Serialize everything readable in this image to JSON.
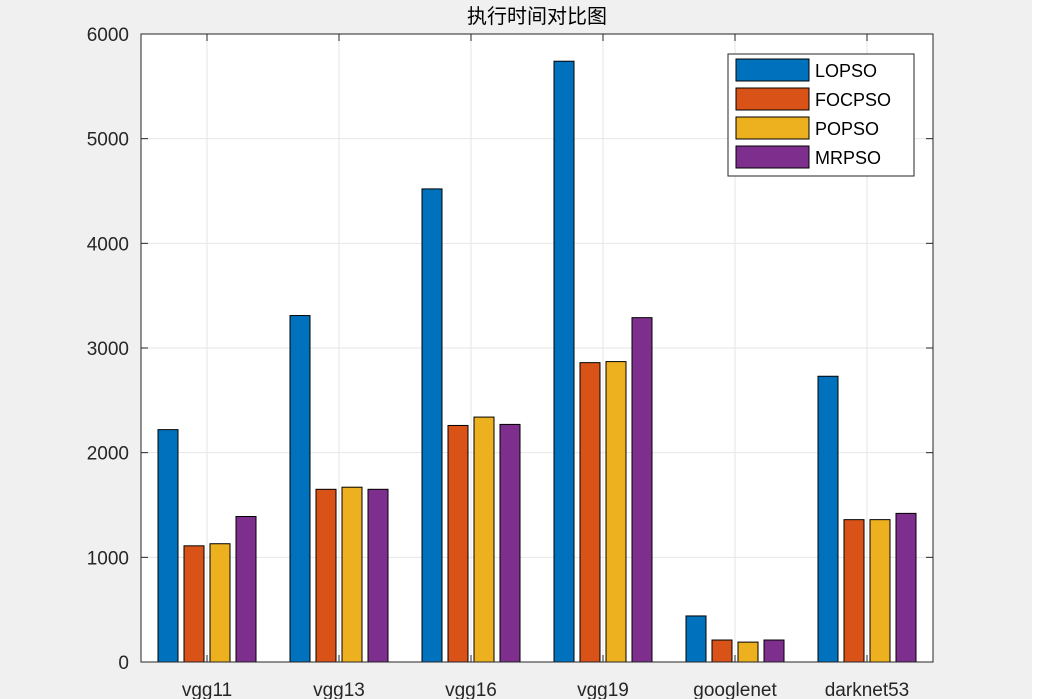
{
  "chart_data": {
    "type": "bar",
    "title": "执行时间对比图",
    "xlabel": "",
    "ylabel": "",
    "categories": [
      "vgg11",
      "vgg13",
      "vgg16",
      "vgg19",
      "googlenet",
      "darknet53"
    ],
    "series": [
      {
        "name": "LOPSO",
        "color": "#0072BD",
        "values": [
          2220,
          3310,
          4520,
          5740,
          440,
          2730
        ]
      },
      {
        "name": "FOCPSO",
        "color": "#D95319",
        "values": [
          1110,
          1650,
          2260,
          2860,
          210,
          1360
        ]
      },
      {
        "name": "POPSO",
        "color": "#EDB120",
        "values": [
          1130,
          1670,
          2340,
          2870,
          190,
          1360
        ]
      },
      {
        "name": "MRPSO",
        "color": "#7E2F8E",
        "values": [
          1390,
          1650,
          2270,
          3290,
          210,
          1420
        ]
      }
    ],
    "ylim": [
      0,
      6000
    ],
    "yticks": [
      0,
      1000,
      2000,
      3000,
      4000,
      5000,
      6000
    ],
    "grid": true,
    "legend_position": "top-right"
  }
}
